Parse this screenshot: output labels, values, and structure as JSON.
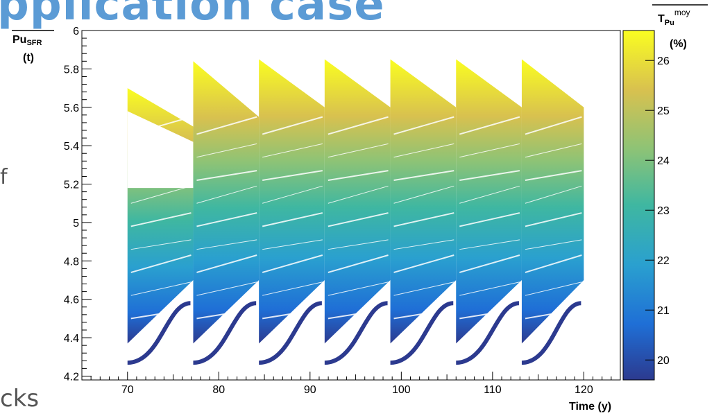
{
  "slide": {
    "title_fragment": "pplication case",
    "bullet_fragment": "cks",
    "side_fragment": "f"
  },
  "chart_data": {
    "type": "scatter",
    "ylabel_main": "Pu",
    "ylabel_sub": "SFR",
    "ylabel_unit": "(t)",
    "xlabel": "Time (y)",
    "colorbar_title_main": "T",
    "colorbar_title_sub": "Pu",
    "colorbar_title_sup": "moy",
    "colorbar_unit": "(%)",
    "xlim": [
      65,
      124
    ],
    "ylim": [
      4.18,
      6.0
    ],
    "x_ticks": [
      70,
      80,
      90,
      100,
      110,
      120
    ],
    "y_ticks": [
      4.2,
      4.4,
      4.6,
      4.8,
      5,
      5.2,
      5.4,
      5.6,
      5.8,
      6
    ],
    "y_tick_labels": [
      "4.2",
      "4.4",
      "4.6",
      "4.8",
      "5",
      "5.2",
      "5.4",
      "5.6",
      "5.8",
      "6"
    ],
    "colorbar_range": [
      19.6,
      26.6
    ],
    "colorbar_ticks": [
      20,
      21,
      22,
      23,
      24,
      25,
      26
    ],
    "colormap": [
      "#2c3a8f",
      "#1f6fd6",
      "#2aa0cf",
      "#3fb7a1",
      "#8dc376",
      "#d8c14f",
      "#fafd21"
    ],
    "cycles": [
      {
        "x_start": 70,
        "x_end": 77.2,
        "top_upper": 5.7,
        "top_lower": 5.6,
        "mid_top": 5.18,
        "low_start": 4.27,
        "low_end": 4.58,
        "end_top": 5.5
      },
      {
        "x_start": 77.2,
        "x_end": 84.4,
        "top_upper": 5.84,
        "top_lower": 5.3,
        "mid_top": 5.3,
        "low_start": 4.27,
        "low_end": 4.58,
        "end_top": 5.55
      },
      {
        "x_start": 84.4,
        "x_end": 91.6,
        "top_upper": 5.85,
        "top_lower": 5.2,
        "mid_top": 5.25,
        "low_start": 4.27,
        "low_end": 4.58,
        "end_top": 5.6
      },
      {
        "x_start": 91.6,
        "x_end": 98.8,
        "top_upper": 5.85,
        "top_lower": 5.2,
        "mid_top": 5.25,
        "low_start": 4.27,
        "low_end": 4.58,
        "end_top": 5.6
      },
      {
        "x_start": 98.8,
        "x_end": 106,
        "top_upper": 5.85,
        "top_lower": 5.2,
        "mid_top": 5.25,
        "low_start": 4.27,
        "low_end": 4.58,
        "end_top": 5.6
      },
      {
        "x_start": 106,
        "x_end": 113.2,
        "top_upper": 5.85,
        "top_lower": 5.2,
        "mid_top": 5.25,
        "low_start": 4.27,
        "low_end": 4.58,
        "end_top": 5.6
      },
      {
        "x_start": 113.2,
        "x_end": 120,
        "top_upper": 5.85,
        "top_lower": 5.2,
        "mid_top": 5.25,
        "low_start": 4.27,
        "low_end": 4.58,
        "end_top": 5.6
      }
    ]
  }
}
